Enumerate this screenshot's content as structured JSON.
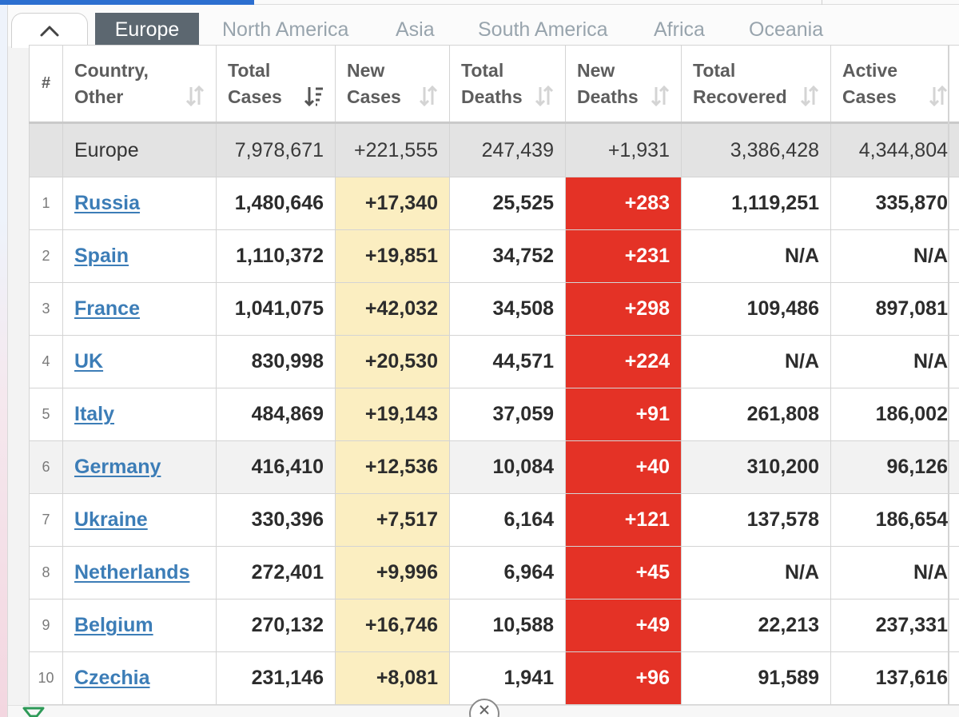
{
  "tabs": [
    {
      "label": "Europe",
      "active": true
    },
    {
      "label": "North America"
    },
    {
      "label": "Asia"
    },
    {
      "label": "South America"
    },
    {
      "label": "Africa"
    },
    {
      "label": "Oceania"
    }
  ],
  "icons": {
    "collapse": "chevron-up-icon",
    "sort": "sort-arrows-icon",
    "sort_active": "sort-descending-icon",
    "close": "close-icon"
  },
  "colors": {
    "new_cases_bg": "#fbeec1",
    "new_deaths_bg": "#e43226",
    "link": "#3c7db7",
    "active_tab": "#5c6770"
  },
  "table": {
    "headers": [
      {
        "key": "rank",
        "line1": "#",
        "line2": ""
      },
      {
        "key": "country",
        "line1": "Country,",
        "line2": "Other"
      },
      {
        "key": "total_cases",
        "line1": "Total",
        "line2": "Cases"
      },
      {
        "key": "new_cases",
        "line1": "New",
        "line2": "Cases"
      },
      {
        "key": "total_deaths",
        "line1": "Total",
        "line2": "Deaths"
      },
      {
        "key": "new_deaths",
        "line1": "New",
        "line2": "Deaths"
      },
      {
        "key": "total_recovered",
        "line1": "Total",
        "line2": "Recovered"
      },
      {
        "key": "active_cases",
        "line1": "Active",
        "line2": "Cases"
      }
    ],
    "summary": {
      "country": "Europe",
      "total_cases": "7,978,671",
      "new_cases": "+221,555",
      "total_deaths": "247,439",
      "new_deaths": "+1,931",
      "total_recovered": "3,386,428",
      "active_cases": "4,344,804"
    },
    "rows": [
      {
        "rank": "1",
        "country": "Russia",
        "total_cases": "1,480,646",
        "new_cases": "+17,340",
        "total_deaths": "25,525",
        "new_deaths": "+283",
        "total_recovered": "1,119,251",
        "active_cases": "335,870"
      },
      {
        "rank": "2",
        "country": "Spain",
        "total_cases": "1,110,372",
        "new_cases": "+19,851",
        "total_deaths": "34,752",
        "new_deaths": "+231",
        "total_recovered": "N/A",
        "active_cases": "N/A"
      },
      {
        "rank": "3",
        "country": "France",
        "total_cases": "1,041,075",
        "new_cases": "+42,032",
        "total_deaths": "34,508",
        "new_deaths": "+298",
        "total_recovered": "109,486",
        "active_cases": "897,081"
      },
      {
        "rank": "4",
        "country": "UK",
        "total_cases": "830,998",
        "new_cases": "+20,530",
        "total_deaths": "44,571",
        "new_deaths": "+224",
        "total_recovered": "N/A",
        "active_cases": "N/A"
      },
      {
        "rank": "5",
        "country": "Italy",
        "total_cases": "484,869",
        "new_cases": "+19,143",
        "total_deaths": "37,059",
        "new_deaths": "+91",
        "total_recovered": "261,808",
        "active_cases": "186,002"
      },
      {
        "rank": "6",
        "country": "Germany",
        "total_cases": "416,410",
        "new_cases": "+12,536",
        "total_deaths": "10,084",
        "new_deaths": "+40",
        "total_recovered": "310,200",
        "active_cases": "96,126"
      },
      {
        "rank": "7",
        "country": "Ukraine",
        "total_cases": "330,396",
        "new_cases": "+7,517",
        "total_deaths": "6,164",
        "new_deaths": "+121",
        "total_recovered": "137,578",
        "active_cases": "186,654"
      },
      {
        "rank": "8",
        "country": "Netherlands",
        "total_cases": "272,401",
        "new_cases": "+9,996",
        "total_deaths": "6,964",
        "new_deaths": "+45",
        "total_recovered": "N/A",
        "active_cases": "N/A"
      },
      {
        "rank": "9",
        "country": "Belgium",
        "total_cases": "270,132",
        "new_cases": "+16,746",
        "total_deaths": "10,588",
        "new_deaths": "+49",
        "total_recovered": "22,213",
        "active_cases": "237,331"
      },
      {
        "rank": "10",
        "country": "Czechia",
        "total_cases": "231,146",
        "new_cases": "+8,081",
        "total_deaths": "1,941",
        "new_deaths": "+96",
        "total_recovered": "91,589",
        "active_cases": "137,616"
      }
    ]
  }
}
